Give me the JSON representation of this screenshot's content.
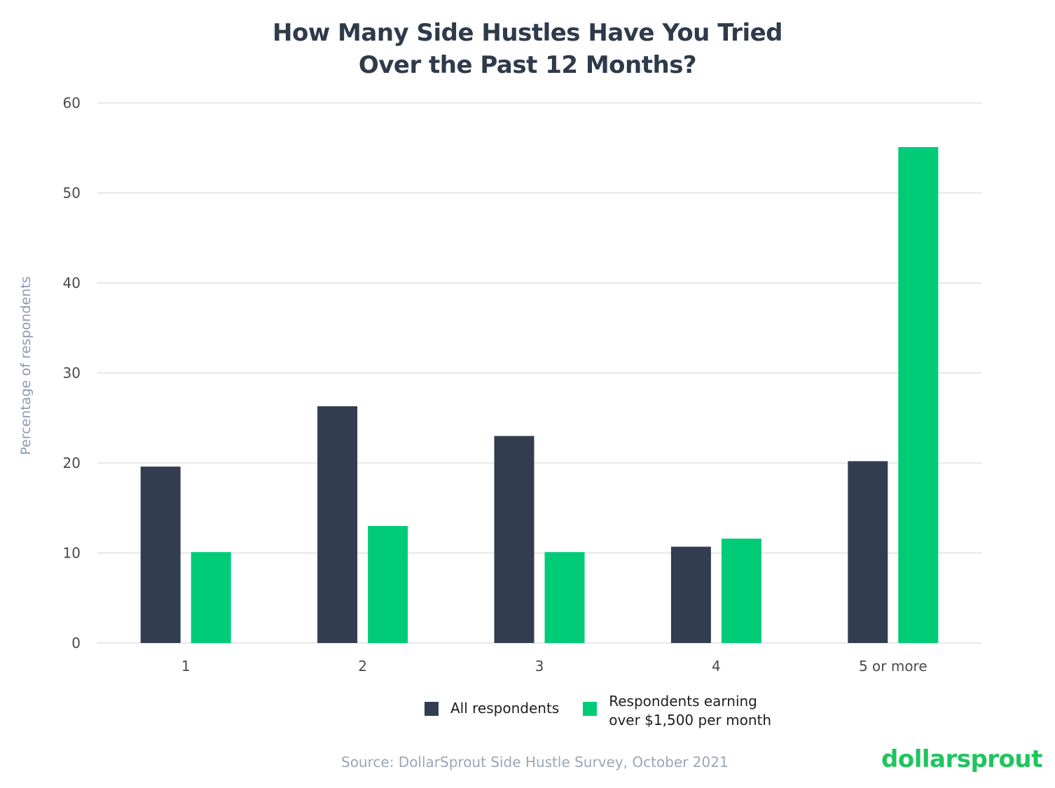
{
  "chart_data": {
    "type": "bar",
    "title_lines": [
      "How Many Side Hustles Have You Tried",
      "Over the Past 12 Months?"
    ],
    "ylabel": "Percentage of respondents",
    "xlabel": "",
    "categories": [
      "1",
      "2",
      "3",
      "4",
      "5 or more"
    ],
    "series": [
      {
        "name": "All respondents",
        "color": "#323e4f",
        "values": [
          19.6,
          26.3,
          23.0,
          10.7,
          20.2
        ]
      },
      {
        "name": "Respondents earning over $1,500 per month",
        "name_lines": [
          "Respondents earning",
          "over $1,500 per month"
        ],
        "color": "#00cc78",
        "values": [
          10.1,
          13.0,
          10.1,
          11.6,
          55.1
        ]
      }
    ],
    "ylim": [
      0,
      60
    ],
    "yticks": [
      0,
      10,
      20,
      30,
      40,
      50,
      60
    ],
    "grid": true,
    "legend_position": "bottom-center"
  },
  "source": "Source: DollarSprout Side Hustle Survey, October 2021",
  "brand": "dollarsprout"
}
